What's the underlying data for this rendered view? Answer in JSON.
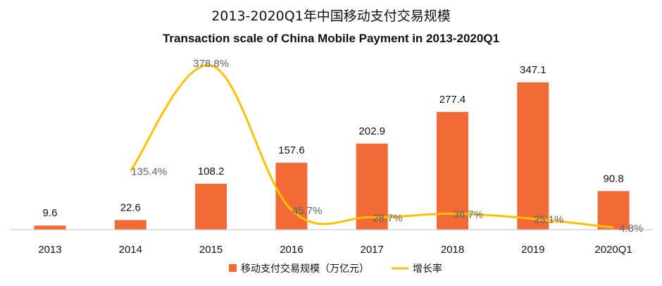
{
  "title_cn": "2013-2020Q1年中国移动支付交易规模",
  "title_en": "Transaction scale of China Mobile Payment in 2013-2020Q1",
  "chart_data": {
    "type": "bar",
    "categories": [
      "2013",
      "2014",
      "2015",
      "2016",
      "2017",
      "2018",
      "2019",
      "2020Q1"
    ],
    "series": [
      {
        "name": "移动支付交易规模（万亿元）",
        "type": "bar",
        "values": [
          9.6,
          22.6,
          108.2,
          157.6,
          202.9,
          277.4,
          347.1,
          90.8
        ],
        "labels": [
          "9.6",
          "22.6",
          "108.2",
          "157.6",
          "202.9",
          "277.4",
          "347.1",
          "90.8"
        ],
        "color": "#F26A35"
      },
      {
        "name": "增长率",
        "type": "line",
        "values": [
          null,
          135.4,
          378.8,
          45.7,
          28.7,
          36.7,
          25.1,
          4.8
        ],
        "labels": [
          "",
          "135.4%",
          "378.8%",
          "45.7%",
          "28.7%",
          "36.7%",
          "25.1%",
          "4.8%"
        ],
        "color": "#FFC000"
      }
    ],
    "legend_position": "bottom",
    "grid": false
  }
}
